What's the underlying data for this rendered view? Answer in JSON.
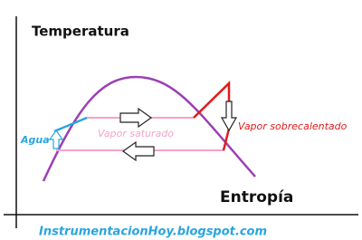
{
  "axes": {
    "y_label": "Temperatura",
    "x_label": "Entropía"
  },
  "labels": {
    "water": "Agua",
    "saturated": "Vapor saturado",
    "superheated": "Vapor sobrecalentado"
  },
  "footer": "InstrumentacionHoy.blogspot.com"
}
